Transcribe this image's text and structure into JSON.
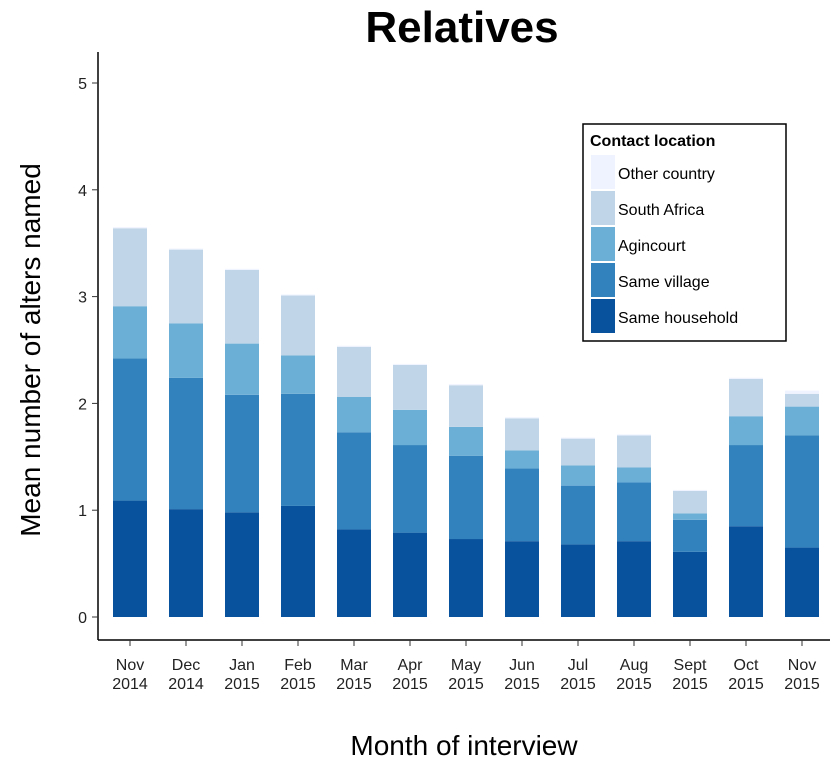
{
  "chart_data": {
    "type": "bar",
    "stacked": true,
    "title": "Relatives",
    "xlabel": "Month of interview",
    "ylabel": "Mean number of alters named",
    "ylim": [
      0,
      5.25
    ],
    "yticks": [
      0,
      1,
      2,
      3,
      4,
      5
    ],
    "grid": false,
    "legend_title": "Contact location",
    "legend_position": "top-right",
    "categories": [
      [
        "Nov",
        "2014"
      ],
      [
        "Dec",
        "2014"
      ],
      [
        "Jan",
        "2015"
      ],
      [
        "Feb",
        "2015"
      ],
      [
        "Mar",
        "2015"
      ],
      [
        "Apr",
        "2015"
      ],
      [
        "May",
        "2015"
      ],
      [
        "Jun",
        "2015"
      ],
      [
        "Jul",
        "2015"
      ],
      [
        "Aug",
        "2015"
      ],
      [
        "Sept",
        "2015"
      ],
      [
        "Oct",
        "2015"
      ],
      [
        "Nov",
        "2015"
      ]
    ],
    "series": [
      {
        "name": "Same household",
        "color": "#08519c",
        "values": [
          1.09,
          1.01,
          0.98,
          1.04,
          0.82,
          0.79,
          0.73,
          0.71,
          0.68,
          0.71,
          0.61,
          0.85,
          0.65
        ]
      },
      {
        "name": "Same village",
        "color": "#3182bd",
        "values": [
          1.33,
          1.23,
          1.1,
          1.05,
          0.91,
          0.82,
          0.78,
          0.68,
          0.55,
          0.55,
          0.3,
          0.76,
          1.05
        ]
      },
      {
        "name": "Agincourt",
        "color": "#6baed6",
        "values": [
          0.49,
          0.51,
          0.48,
          0.36,
          0.33,
          0.33,
          0.27,
          0.17,
          0.19,
          0.14,
          0.06,
          0.27,
          0.27
        ]
      },
      {
        "name": "South Africa",
        "color": "#c0d6e8",
        "values": [
          0.73,
          0.69,
          0.69,
          0.56,
          0.47,
          0.42,
          0.39,
          0.3,
          0.25,
          0.3,
          0.21,
          0.35,
          0.12
        ]
      },
      {
        "name": "Other country",
        "color": "#eff3ff",
        "values": [
          0.01,
          0.01,
          0.01,
          0.01,
          0.01,
          0.01,
          0.01,
          0.01,
          0.01,
          0.01,
          0.01,
          0.01,
          0.03
        ]
      }
    ]
  }
}
